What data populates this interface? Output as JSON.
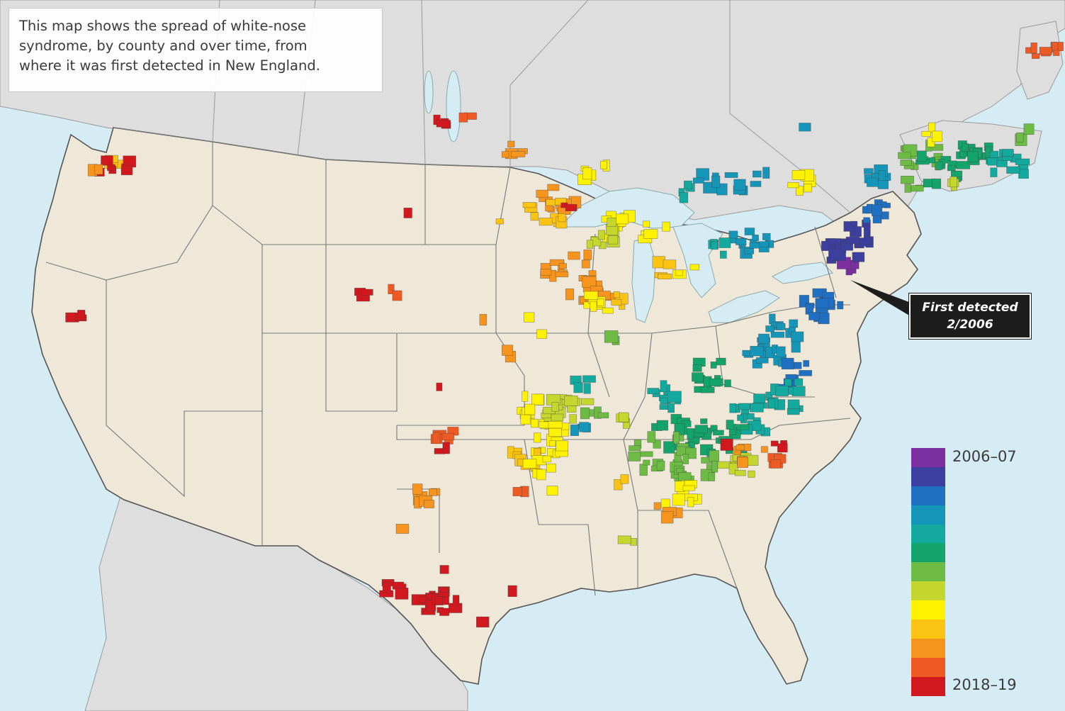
{
  "caption": {
    "line1": "This map shows the spread of white-nose",
    "line2": "syndrome, by county and over time, from",
    "line3": "where it was first detected in New England."
  },
  "callout": {
    "line1": "First detected",
    "line2": "2/2006"
  },
  "legend": {
    "start_label": "2006–07",
    "end_label": "2018–19",
    "colors": [
      "#7b2fa0",
      "#3d3f9e",
      "#1f6fc2",
      "#1596b8",
      "#13a99e",
      "#14a36a",
      "#6dbb45",
      "#c5d62e",
      "#fff200",
      "#fcc412",
      "#f7941e",
      "#ee5a24",
      "#d2181f"
    ]
  },
  "map_style": {
    "water": "#d6ecf5",
    "us_land": "#efe8d9",
    "other_land": "#dedede",
    "border": "#555555",
    "lake": "#cfe7f2"
  }
}
